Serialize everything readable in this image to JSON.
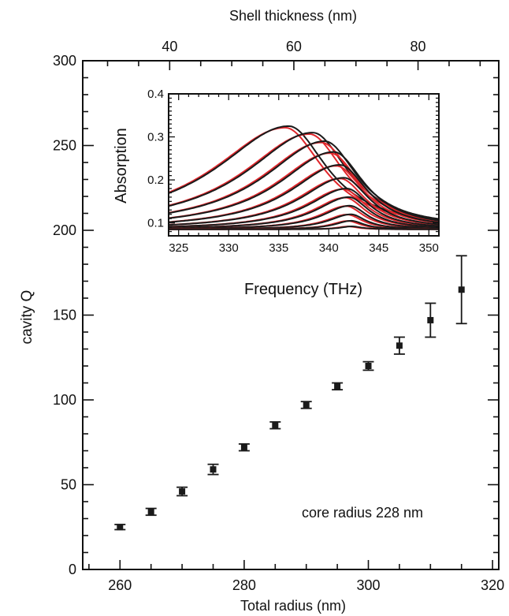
{
  "main": {
    "type": "scatter",
    "xlabel": "Total radius (nm)",
    "ylabel": "cavity Q",
    "top_xlabel": "Shell thickness (nm)",
    "annotation": "core radius 228 nm",
    "xlim": [
      254,
      321
    ],
    "ylim": [
      0,
      300
    ],
    "top_xlim": [
      26,
      93
    ],
    "x_ticks": [
      260,
      280,
      300,
      320
    ],
    "y_ticks": [
      0,
      50,
      100,
      150,
      200,
      250,
      300
    ],
    "top_ticks": [
      40,
      60,
      80
    ]
  },
  "chart_data": [
    {
      "type": "scatter",
      "xlabel": "Total radius (nm)",
      "ylabel": "cavity Q",
      "top_xlabel": "Shell thickness (nm)",
      "annotation": "core radius 228 nm",
      "xlim": [
        254,
        321
      ],
      "ylim": [
        0,
        300
      ],
      "marker_color": "#1a1a1a",
      "points": [
        {
          "x": 260,
          "y": 25,
          "err": 1.5
        },
        {
          "x": 265,
          "y": 34,
          "err": 2
        },
        {
          "x": 270,
          "y": 46,
          "err": 2.5
        },
        {
          "x": 275,
          "y": 59,
          "err": 3
        },
        {
          "x": 280,
          "y": 72,
          "err": 2
        },
        {
          "x": 285,
          "y": 85,
          "err": 2
        },
        {
          "x": 290,
          "y": 97,
          "err": 2
        },
        {
          "x": 295,
          "y": 108,
          "err": 2
        },
        {
          "x": 300,
          "y": 120,
          "err": 2.5
        },
        {
          "x": 305,
          "y": 132,
          "err": 5
        },
        {
          "x": 310,
          "y": 147,
          "err": 10
        },
        {
          "x": 315,
          "y": 165,
          "err": 20
        }
      ]
    },
    {
      "type": "line",
      "xlabel": "Frequency (THz)",
      "ylabel": "Absorption",
      "xlim": [
        324,
        351
      ],
      "ylim": [
        0.07,
        0.4
      ],
      "x_ticks": [
        325,
        330,
        335,
        340,
        345,
        350
      ],
      "y_ticks": [
        0.1,
        0.2,
        0.3,
        0.4
      ],
      "colors": {
        "black": "#1a1a1a",
        "red": "#e0262b"
      },
      "series": [
        {
          "peak_freq": 336.0,
          "peak_abs": 0.325
        },
        {
          "peak_freq": 338.4,
          "peak_abs": 0.31
        },
        {
          "peak_freq": 339.6,
          "peak_abs": 0.29
        },
        {
          "peak_freq": 340.5,
          "peak_abs": 0.265
        },
        {
          "peak_freq": 341.1,
          "peak_abs": 0.235
        },
        {
          "peak_freq": 341.5,
          "peak_abs": 0.205
        },
        {
          "peak_freq": 341.8,
          "peak_abs": 0.18
        },
        {
          "peak_freq": 342.0,
          "peak_abs": 0.16
        },
        {
          "peak_freq": 342.1,
          "peak_abs": 0.14
        },
        {
          "peak_freq": 342.2,
          "peak_abs": 0.12
        },
        {
          "peak_freq": 342.25,
          "peak_abs": 0.105
        },
        {
          "peak_freq": 342.3,
          "peak_abs": 0.092
        }
      ]
    }
  ]
}
